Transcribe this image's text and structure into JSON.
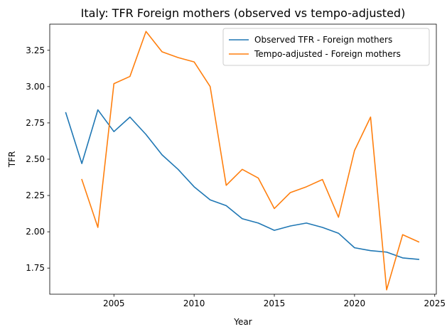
{
  "chart_data": {
    "type": "line",
    "title": "Italy: TFR Foreign mothers (observed vs tempo-adjusted)",
    "xlabel": "Year",
    "ylabel": "TFR",
    "xlim": [
      2001.0,
      2025.1
    ],
    "ylim": [
      1.57,
      3.43
    ],
    "xticks": [
      2005,
      2010,
      2015,
      2020,
      2025
    ],
    "xtick_labels": [
      "2005",
      "2010",
      "2015",
      "2020",
      "2025"
    ],
    "yticks": [
      1.75,
      2.0,
      2.25,
      2.5,
      2.75,
      3.0,
      3.25
    ],
    "ytick_labels": [
      "1.75",
      "2.00",
      "2.25",
      "2.50",
      "2.75",
      "3.00",
      "3.25"
    ],
    "grid": false,
    "legend_position": "top-right",
    "series": [
      {
        "name": "Observed TFR - Foreign mothers",
        "color": "#1f77b4",
        "x": [
          2002,
          2003,
          2004,
          2005,
          2006,
          2007,
          2008,
          2009,
          2010,
          2011,
          2012,
          2013,
          2014,
          2015,
          2016,
          2017,
          2018,
          2019,
          2020,
          2021,
          2022,
          2023,
          2024
        ],
        "values": [
          2.82,
          2.47,
          2.84,
          2.69,
          2.79,
          2.67,
          2.53,
          2.43,
          2.31,
          2.22,
          2.18,
          2.09,
          2.06,
          2.01,
          2.04,
          2.06,
          2.03,
          1.99,
          1.89,
          1.87,
          1.86,
          1.82,
          1.81
        ]
      },
      {
        "name": "Tempo-adjusted - Foreign mothers",
        "color": "#ff7f0e",
        "x": [
          2003,
          2004,
          2005,
          2006,
          2007,
          2008,
          2009,
          2010,
          2011,
          2012,
          2013,
          2014,
          2015,
          2016,
          2017,
          2018,
          2019,
          2020,
          2021,
          2022,
          2023,
          2024
        ],
        "values": [
          2.36,
          2.03,
          3.02,
          3.07,
          3.38,
          3.24,
          3.2,
          3.17,
          3.0,
          2.32,
          2.43,
          2.37,
          2.16,
          2.27,
          2.31,
          2.36,
          2.1,
          2.56,
          2.79,
          1.6,
          1.98,
          1.93
        ]
      }
    ]
  }
}
